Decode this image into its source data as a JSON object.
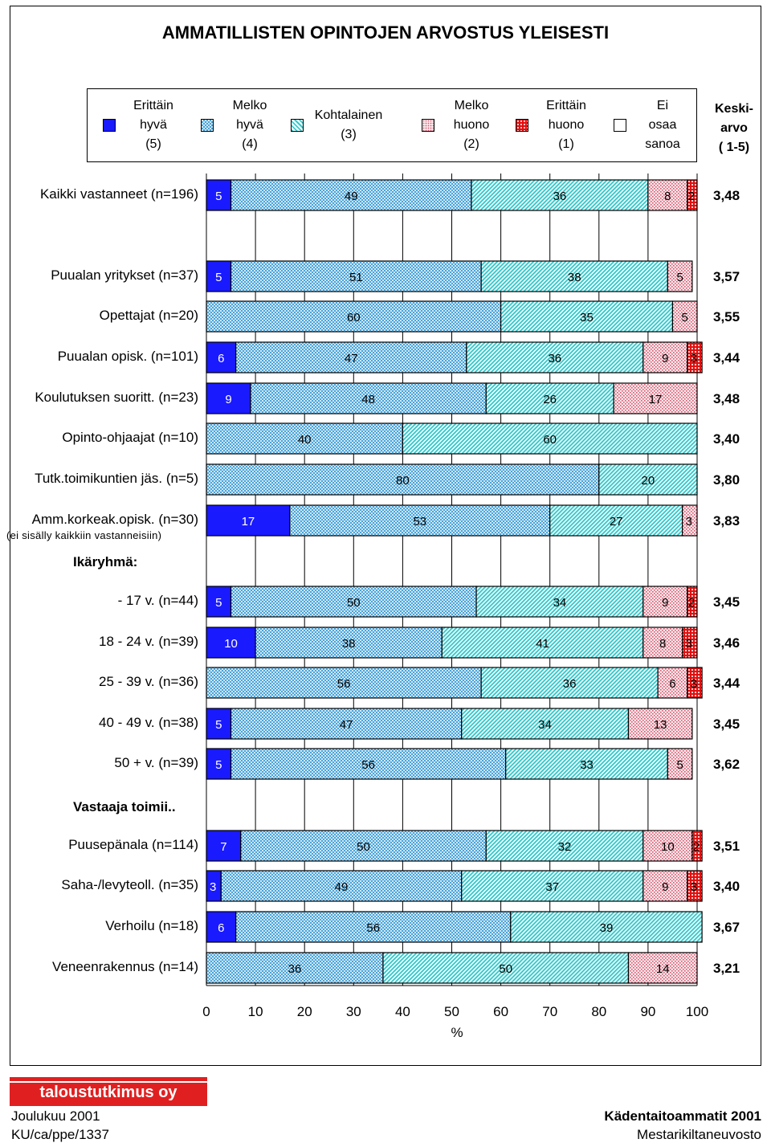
{
  "title": "AMMATILLISTEN OPINTOJEN ARVOSTUS YLEISESTI",
  "legend": {
    "items": [
      {
        "lines": [
          "Erittäin",
          "hyvä",
          "(5)"
        ],
        "fill": "solid-blue"
      },
      {
        "lines": [
          "Melko",
          "hyvä",
          "(4)"
        ],
        "fill": "blue-check"
      },
      {
        "lines": [
          "Kohtalainen",
          "(3)"
        ],
        "fill": "cyan-hatch"
      },
      {
        "lines": [
          "Melko",
          "huono",
          "(2)"
        ],
        "fill": "pink-dots"
      },
      {
        "lines": [
          "Erittäin",
          "huono",
          "(1)"
        ],
        "fill": "red-grid"
      },
      {
        "lines": [
          "Ei",
          "osaa",
          "sanoa"
        ],
        "fill": "white"
      }
    ],
    "mean_header": [
      "Keski-",
      "arvo",
      "( 1-5)"
    ]
  },
  "colors": {
    "solid_blue": "#1a1aff",
    "blue_check": "#4aa3d8",
    "cyan_hatch": "#40cfd0",
    "pink_dots": "#e07a8a",
    "red_grid": "#e01010"
  },
  "chart_data": {
    "type": "bar",
    "orientation": "horizontal-stacked",
    "xlim": [
      0,
      100
    ],
    "xticks": [
      "0",
      "10",
      "20",
      "30",
      "40",
      "50",
      "60",
      "70",
      "80",
      "90",
      "100"
    ],
    "xlabel": "%",
    "series_names": [
      "Erittäin hyvä (5)",
      "Melko hyvä (4)",
      "Kohtalainen (3)",
      "Melko huono (2)",
      "Erittäin huono (1)",
      "Ei osaa sanoa"
    ],
    "rows": [
      {
        "label": "Kaikki vastanneet (n=196)",
        "values": [
          5,
          49,
          36,
          8,
          2,
          0
        ],
        "labels": [
          "5",
          "49",
          "36",
          "8",
          "2",
          ""
        ],
        "mean": "3,48"
      },
      {
        "label": "Puualan yritykset (n=37)",
        "values": [
          5,
          51,
          38,
          5,
          0,
          0
        ],
        "labels": [
          "5",
          "51",
          "38",
          "5",
          "",
          ""
        ],
        "mean": "3,57"
      },
      {
        "label": "Opettajat (n=20)",
        "values": [
          0,
          60,
          35,
          5,
          0,
          0
        ],
        "labels": [
          "",
          "60",
          "35",
          "5",
          "",
          ""
        ],
        "mean": "3,55"
      },
      {
        "label": "Puualan opisk. (n=101)",
        "values": [
          6,
          47,
          36,
          9,
          3,
          0
        ],
        "labels": [
          "6",
          "47",
          "36",
          "9",
          "3",
          ""
        ],
        "mean": "3,44"
      },
      {
        "label": "Koulutuksen suoritt. (n=23)",
        "values": [
          9,
          48,
          26,
          17,
          0,
          0
        ],
        "labels": [
          "9",
          "48",
          "26",
          "17",
          "",
          ""
        ],
        "mean": "3,48"
      },
      {
        "label": "Opinto-ohjaajat (n=10)",
        "values": [
          0,
          40,
          60,
          0,
          0,
          0
        ],
        "labels": [
          "",
          "40",
          "60",
          "",
          "",
          ""
        ],
        "mean": "3,40"
      },
      {
        "label": "Tutk.toimikuntien jäs. (n=5)",
        "values": [
          0,
          80,
          20,
          0,
          0,
          0
        ],
        "labels": [
          "",
          "80",
          "20",
          "",
          "",
          ""
        ],
        "mean": "3,80"
      },
      {
        "label": "Amm.korkeak.opisk. (n=30)",
        "sublabel": "(ei sisälly kaikkiin vastanneisiin)",
        "values": [
          17,
          53,
          27,
          3,
          0,
          0
        ],
        "labels": [
          "17",
          "53",
          "27",
          "3",
          "",
          ""
        ],
        "mean": "3,83"
      },
      {
        "label": "- 17 v. (n=44)",
        "values": [
          5,
          50,
          34,
          9,
          2,
          0
        ],
        "labels": [
          "5",
          "50",
          "34",
          "9",
          "2",
          ""
        ],
        "mean": "3,45"
      },
      {
        "label": "18 - 24 v. (n=39)",
        "values": [
          10,
          38,
          41,
          8,
          3,
          0
        ],
        "labels": [
          "10",
          "38",
          "41",
          "8",
          "3",
          ""
        ],
        "mean": "3,46"
      },
      {
        "label": "25 - 39 v. (n=36)",
        "values": [
          0,
          56,
          36,
          6,
          3,
          0
        ],
        "labels": [
          "",
          "56",
          "36",
          "6",
          "3",
          ""
        ],
        "mean": "3,44"
      },
      {
        "label": "40 - 49 v. (n=38)",
        "values": [
          5,
          47,
          34,
          13,
          0,
          0
        ],
        "labels": [
          "5",
          "47",
          "34",
          "13",
          "",
          ""
        ],
        "mean": "3,45"
      },
      {
        "label": "50 + v. (n=39)",
        "values": [
          5,
          56,
          33,
          5,
          0,
          0
        ],
        "labels": [
          "5",
          "56",
          "33",
          "5",
          "",
          ""
        ],
        "mean": "3,62"
      },
      {
        "label": "Puusepänala (n=114)",
        "values": [
          7,
          50,
          32,
          10,
          2,
          0
        ],
        "labels": [
          "7",
          "50",
          "32",
          "10",
          "2",
          ""
        ],
        "mean": "3,51"
      },
      {
        "label": "Saha-/levyteoll. (n=35)",
        "values": [
          3,
          49,
          37,
          9,
          3,
          0
        ],
        "labels": [
          "3",
          "49",
          "37",
          "9",
          "3",
          ""
        ],
        "mean": "3,40"
      },
      {
        "label": "Verhoilu (n=18)",
        "values": [
          6,
          56,
          39,
          0,
          0,
          0
        ],
        "labels": [
          "6",
          "56",
          "39",
          "",
          "",
          ""
        ],
        "mean": "3,67"
      },
      {
        "label": "Veneenrakennus (n=14)",
        "values": [
          0,
          36,
          50,
          14,
          0,
          0
        ],
        "labels": [
          "",
          "36",
          "50",
          "14",
          "",
          ""
        ],
        "mean": "3,21"
      }
    ],
    "group_headings": [
      "Ikäryhmä:",
      "Vastaaja toimii.."
    ]
  },
  "footer": {
    "brand": "taloustutkimus oy",
    "date": "Joulukuu 2001",
    "code": "KU/ca/ppe/1337",
    "project": "Kädentaitoammatit 2001",
    "client": "Mestarikiltaneuvosto"
  }
}
